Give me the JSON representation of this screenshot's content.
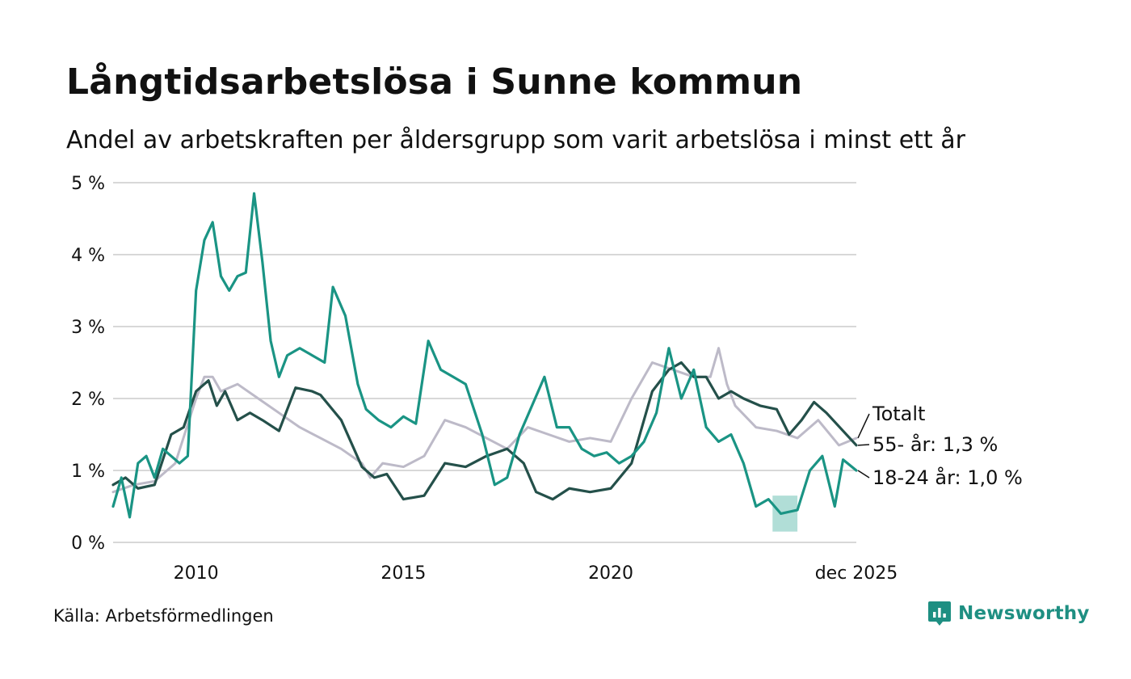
{
  "title": "Långtidsarbetslösa i Sunne kommun",
  "subtitle": "Andel av arbetskraften per åldersgrupp som varit arbetslösa i minst ett år",
  "source": "Källa: Arbetsförmedlingen",
  "brand": "Newsworthy",
  "colors": {
    "total": "#bdbac8",
    "age55": "#24504a",
    "age1824": "#1a9484",
    "band": "#a9dad3",
    "grid": "#d8d8d8"
  },
  "chart_data": {
    "type": "line",
    "ylim": [
      0,
      5
    ],
    "xlim": [
      2008.0,
      2025.92
    ],
    "yticks": [
      {
        "v": 0,
        "label": "0 %"
      },
      {
        "v": 1,
        "label": "1 %"
      },
      {
        "v": 2,
        "label": "2 %"
      },
      {
        "v": 3,
        "label": "3 %"
      },
      {
        "v": 4,
        "label": "4 %"
      },
      {
        "v": 5,
        "label": "5 %"
      }
    ],
    "xticks": [
      {
        "v": 2010,
        "label": "2010"
      },
      {
        "v": 2015,
        "label": "2015"
      },
      {
        "v": 2020,
        "label": "2020"
      },
      {
        "v": 2025.92,
        "label": "dec 2025"
      }
    ],
    "series": [
      {
        "key": "total",
        "name": "Totalt",
        "end_label": "Totalt",
        "x": [
          2008.0,
          2008.5,
          2009.0,
          2009.5,
          2010.0,
          2010.2,
          2010.4,
          2010.6,
          2011.0,
          2011.5,
          2012.0,
          2012.5,
          2013.0,
          2013.5,
          2014.0,
          2014.2,
          2014.5,
          2015.0,
          2015.5,
          2016.0,
          2016.5,
          2017.0,
          2017.5,
          2018.0,
          2018.5,
          2019.0,
          2019.5,
          2020.0,
          2020.5,
          2021.0,
          2021.5,
          2022.0,
          2022.4,
          2022.6,
          2022.8,
          2023.0,
          2023.5,
          2024.0,
          2024.5,
          2025.0,
          2025.5,
          2025.92
        ],
        "y": [
          0.7,
          0.8,
          0.85,
          1.1,
          2.0,
          2.3,
          2.3,
          2.1,
          2.2,
          2.0,
          1.8,
          1.6,
          1.45,
          1.3,
          1.1,
          0.9,
          1.1,
          1.05,
          1.2,
          1.7,
          1.6,
          1.45,
          1.3,
          1.6,
          1.5,
          1.4,
          1.45,
          1.4,
          2.0,
          2.5,
          2.4,
          2.3,
          2.3,
          2.7,
          2.2,
          1.9,
          1.6,
          1.55,
          1.45,
          1.7,
          1.35,
          1.45
        ]
      },
      {
        "key": "age55",
        "name": "55- år",
        "end_label": "55- år: 1,3 %",
        "x": [
          2008.0,
          2008.3,
          2008.6,
          2009.0,
          2009.4,
          2009.7,
          2010.0,
          2010.3,
          2010.5,
          2010.7,
          2011.0,
          2011.3,
          2011.6,
          2012.0,
          2012.4,
          2012.8,
          2013.0,
          2013.5,
          2014.0,
          2014.3,
          2014.6,
          2015.0,
          2015.5,
          2016.0,
          2016.5,
          2017.0,
          2017.5,
          2017.9,
          2018.2,
          2018.6,
          2019.0,
          2019.5,
          2020.0,
          2020.5,
          2021.0,
          2021.4,
          2021.7,
          2022.0,
          2022.3,
          2022.6,
          2022.9,
          2023.2,
          2023.6,
          2024.0,
          2024.3,
          2024.6,
          2024.9,
          2025.2,
          2025.6,
          2025.92
        ],
        "y": [
          0.8,
          0.9,
          0.75,
          0.8,
          1.5,
          1.6,
          2.1,
          2.25,
          1.9,
          2.1,
          1.7,
          1.8,
          1.7,
          1.55,
          2.15,
          2.1,
          2.05,
          1.7,
          1.05,
          0.9,
          0.95,
          0.6,
          0.65,
          1.1,
          1.05,
          1.2,
          1.3,
          1.1,
          0.7,
          0.6,
          0.75,
          0.7,
          0.75,
          1.1,
          2.1,
          2.4,
          2.5,
          2.3,
          2.3,
          2.0,
          2.1,
          2.0,
          1.9,
          1.85,
          1.5,
          1.7,
          1.95,
          1.8,
          1.55,
          1.35
        ]
      },
      {
        "key": "age1824",
        "name": "18-24 år",
        "end_label": "18-24 år: 1,0 %",
        "x": [
          2008.0,
          2008.2,
          2008.4,
          2008.6,
          2008.8,
          2009.0,
          2009.2,
          2009.4,
          2009.6,
          2009.8,
          2010.0,
          2010.2,
          2010.4,
          2010.6,
          2010.8,
          2011.0,
          2011.2,
          2011.4,
          2011.6,
          2011.8,
          2012.0,
          2012.2,
          2012.5,
          2012.8,
          2013.1,
          2013.3,
          2013.6,
          2013.9,
          2014.1,
          2014.4,
          2014.7,
          2015.0,
          2015.3,
          2015.6,
          2015.9,
          2016.2,
          2016.5,
          2016.9,
          2017.2,
          2017.5,
          2017.8,
          2018.1,
          2018.4,
          2018.7,
          2019.0,
          2019.3,
          2019.6,
          2019.9,
          2020.2,
          2020.5,
          2020.8,
          2021.1,
          2021.4,
          2021.7,
          2022.0,
          2022.3,
          2022.6,
          2022.9,
          2023.2,
          2023.5,
          2023.8,
          2024.1,
          2024.5,
          2024.8,
          2025.1,
          2025.4,
          2025.6,
          2025.92
        ],
        "y": [
          0.5,
          0.9,
          0.35,
          1.1,
          1.2,
          0.9,
          1.3,
          1.2,
          1.1,
          1.2,
          3.5,
          4.2,
          4.45,
          3.7,
          3.5,
          3.7,
          3.75,
          4.85,
          3.9,
          2.8,
          2.3,
          2.6,
          2.7,
          2.6,
          2.5,
          3.55,
          3.15,
          2.2,
          1.85,
          1.7,
          1.6,
          1.75,
          1.65,
          2.8,
          2.4,
          2.3,
          2.2,
          1.5,
          0.8,
          0.9,
          1.5,
          1.9,
          2.3,
          1.6,
          1.6,
          1.3,
          1.2,
          1.25,
          1.1,
          1.2,
          1.4,
          1.8,
          2.7,
          2.0,
          2.4,
          1.6,
          1.4,
          1.5,
          1.1,
          0.5,
          0.6,
          0.4,
          0.45,
          1.0,
          1.2,
          0.5,
          1.15,
          1.0
        ]
      }
    ],
    "uncertainty_band": {
      "series": "age1824",
      "x": [
        2023.9,
        2024.5
      ],
      "low": [
        0.15,
        0.15
      ],
      "high": [
        0.65,
        0.65
      ]
    }
  }
}
